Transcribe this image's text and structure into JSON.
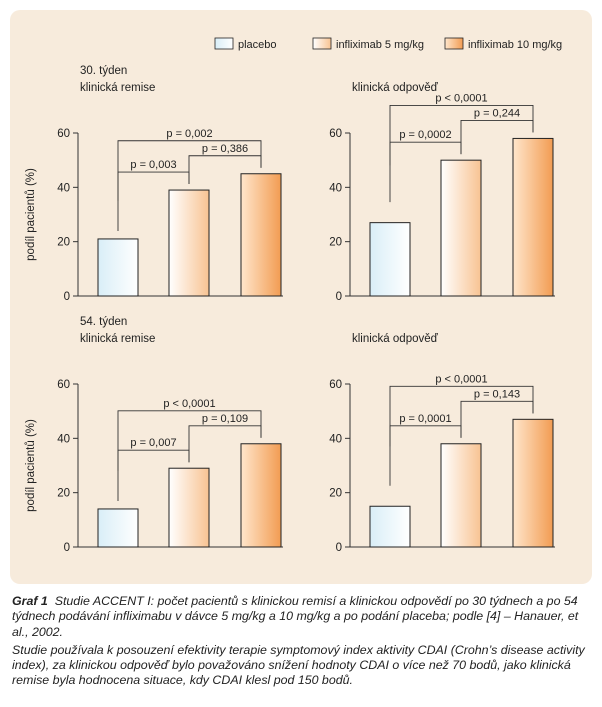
{
  "legend": [
    {
      "name": "placebo",
      "fill": "#d9eef7",
      "gradient_to": "#ffffff"
    },
    {
      "name": "infliximab 5 mg/kg",
      "fill": "#ffffff",
      "gradient_to": "#f8c392"
    },
    {
      "name": "infliximab 10 mg/kg",
      "fill": "#ffe6cc",
      "gradient_to": "#f29c52"
    }
  ],
  "ylabel": "podíl pacientů (%)",
  "colors": {
    "panel": "#f7ebdc",
    "axis": "#333333",
    "bar_edge": "#222222"
  },
  "chart_data": [
    {
      "type": "bar",
      "group_label": "30. týden",
      "title": "klinická remise",
      "categories": [
        "placebo",
        "infliximab 5 mg/kg",
        "infliximab 10 mg/kg"
      ],
      "values": [
        21,
        39,
        45
      ],
      "ylim": [
        0,
        60
      ],
      "yticks": [
        0,
        20,
        40,
        60
      ],
      "annotations": [
        {
          "text": "p = 0,003",
          "from": 0,
          "to": 1
        },
        {
          "text": "p = 0,386",
          "from": 1,
          "to": 2
        },
        {
          "text": "p = 0,002",
          "from": 0,
          "to": 2
        }
      ]
    },
    {
      "type": "bar",
      "group_label": "",
      "title": "klinická odpověď",
      "categories": [
        "placebo",
        "infliximab 5 mg/kg",
        "infliximab 10 mg/kg"
      ],
      "values": [
        27,
        50,
        58
      ],
      "ylim": [
        0,
        60
      ],
      "yticks": [
        0,
        20,
        40,
        60
      ],
      "annotations": [
        {
          "text": "p = 0,0002",
          "from": 0,
          "to": 1
        },
        {
          "text": "p = 0,244",
          "from": 1,
          "to": 2
        },
        {
          "text": "p < 0,0001",
          "from": 0,
          "to": 2
        }
      ]
    },
    {
      "type": "bar",
      "group_label": "54. týden",
      "title": "klinická remise",
      "categories": [
        "placebo",
        "infliximab 5 mg/kg",
        "infliximab 10 mg/kg"
      ],
      "values": [
        14,
        29,
        38
      ],
      "ylim": [
        0,
        60
      ],
      "yticks": [
        0,
        20,
        40,
        60
      ],
      "annotations": [
        {
          "text": "p = 0,007",
          "from": 0,
          "to": 1
        },
        {
          "text": "p = 0,109",
          "from": 1,
          "to": 2
        },
        {
          "text": "p < 0,0001",
          "from": 0,
          "to": 2
        }
      ]
    },
    {
      "type": "bar",
      "group_label": "",
      "title": "klinická odpověď",
      "categories": [
        "placebo",
        "infliximab 5 mg/kg",
        "infliximab 10 mg/kg"
      ],
      "values": [
        15,
        38,
        47
      ],
      "ylim": [
        0,
        60
      ],
      "yticks": [
        0,
        20,
        40,
        60
      ],
      "annotations": [
        {
          "text": "p = 0,0001",
          "from": 0,
          "to": 1
        },
        {
          "text": "p = 0,143",
          "from": 1,
          "to": 2
        },
        {
          "text": "p < 0,0001",
          "from": 0,
          "to": 2
        }
      ]
    }
  ],
  "caption": {
    "label": "Graf 1",
    "text1": "Studie ACCENT I: počet pacientů s klinickou remisí a klinickou odpovědí po 30 týdnech a po 54 týdnech podávání infliximabu v dávce 5 mg/kg a 10 mg/kg a po podání placeba; podle [4] – Hanauer, et al., 2002.",
    "text2": "Studie používala k posouzení efektivity terapie symptomový index aktivity CDAI (Crohn’s disease activity index), za klinickou odpověď bylo považováno snížení hodnoty CDAI o více než 70 bodů, jako klinická remise byla hodnocena situace, kdy CDAI klesl pod 150 bodů."
  }
}
